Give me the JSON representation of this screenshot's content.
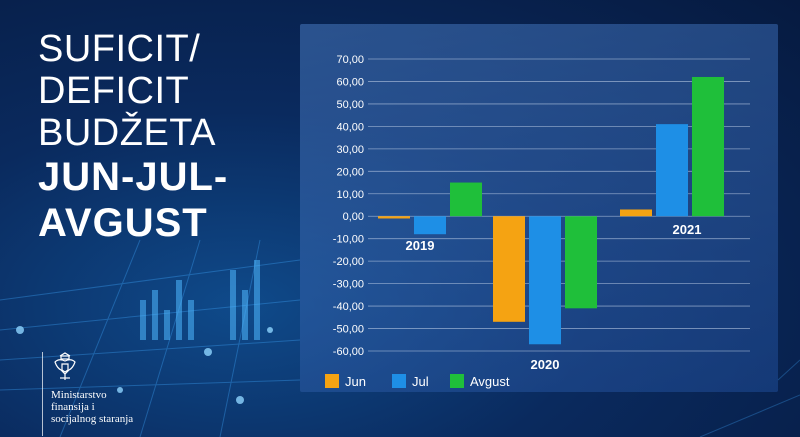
{
  "headline": {
    "line1": "SUFICIT/",
    "line2": "DEFICIT",
    "line3": "BUDŽETA",
    "line4": "JUN-JUL-",
    "line5": "AVGUST"
  },
  "ministry": {
    "name": "Ministarstvo\nfinansija i\nsocijalnog staranja"
  },
  "colors": {
    "Jun": "#f5a312",
    "Jul": "#1e8fe6",
    "Avgust": "#1fbf3a",
    "text": "#ffffff",
    "grid": "#c9d8ee"
  },
  "chart_data": {
    "type": "bar",
    "categories": [
      "2019",
      "2020",
      "2021"
    ],
    "series": [
      {
        "name": "Jun",
        "values": [
          -1,
          -47,
          3
        ]
      },
      {
        "name": "Jul",
        "values": [
          -8,
          -57,
          41
        ]
      },
      {
        "name": "Avgust",
        "values": [
          15,
          -41,
          62
        ]
      }
    ],
    "ylim": [
      -60,
      70
    ],
    "yticks": [
      "70,00",
      "60,00",
      "50,00",
      "40,00",
      "30,00",
      "20,00",
      "10,00",
      "0,00",
      "-10,00",
      "-20,00",
      "-30,00",
      "-40,00",
      "-50,00",
      "-60,00"
    ],
    "grid": true,
    "legend": "bottom-left"
  }
}
